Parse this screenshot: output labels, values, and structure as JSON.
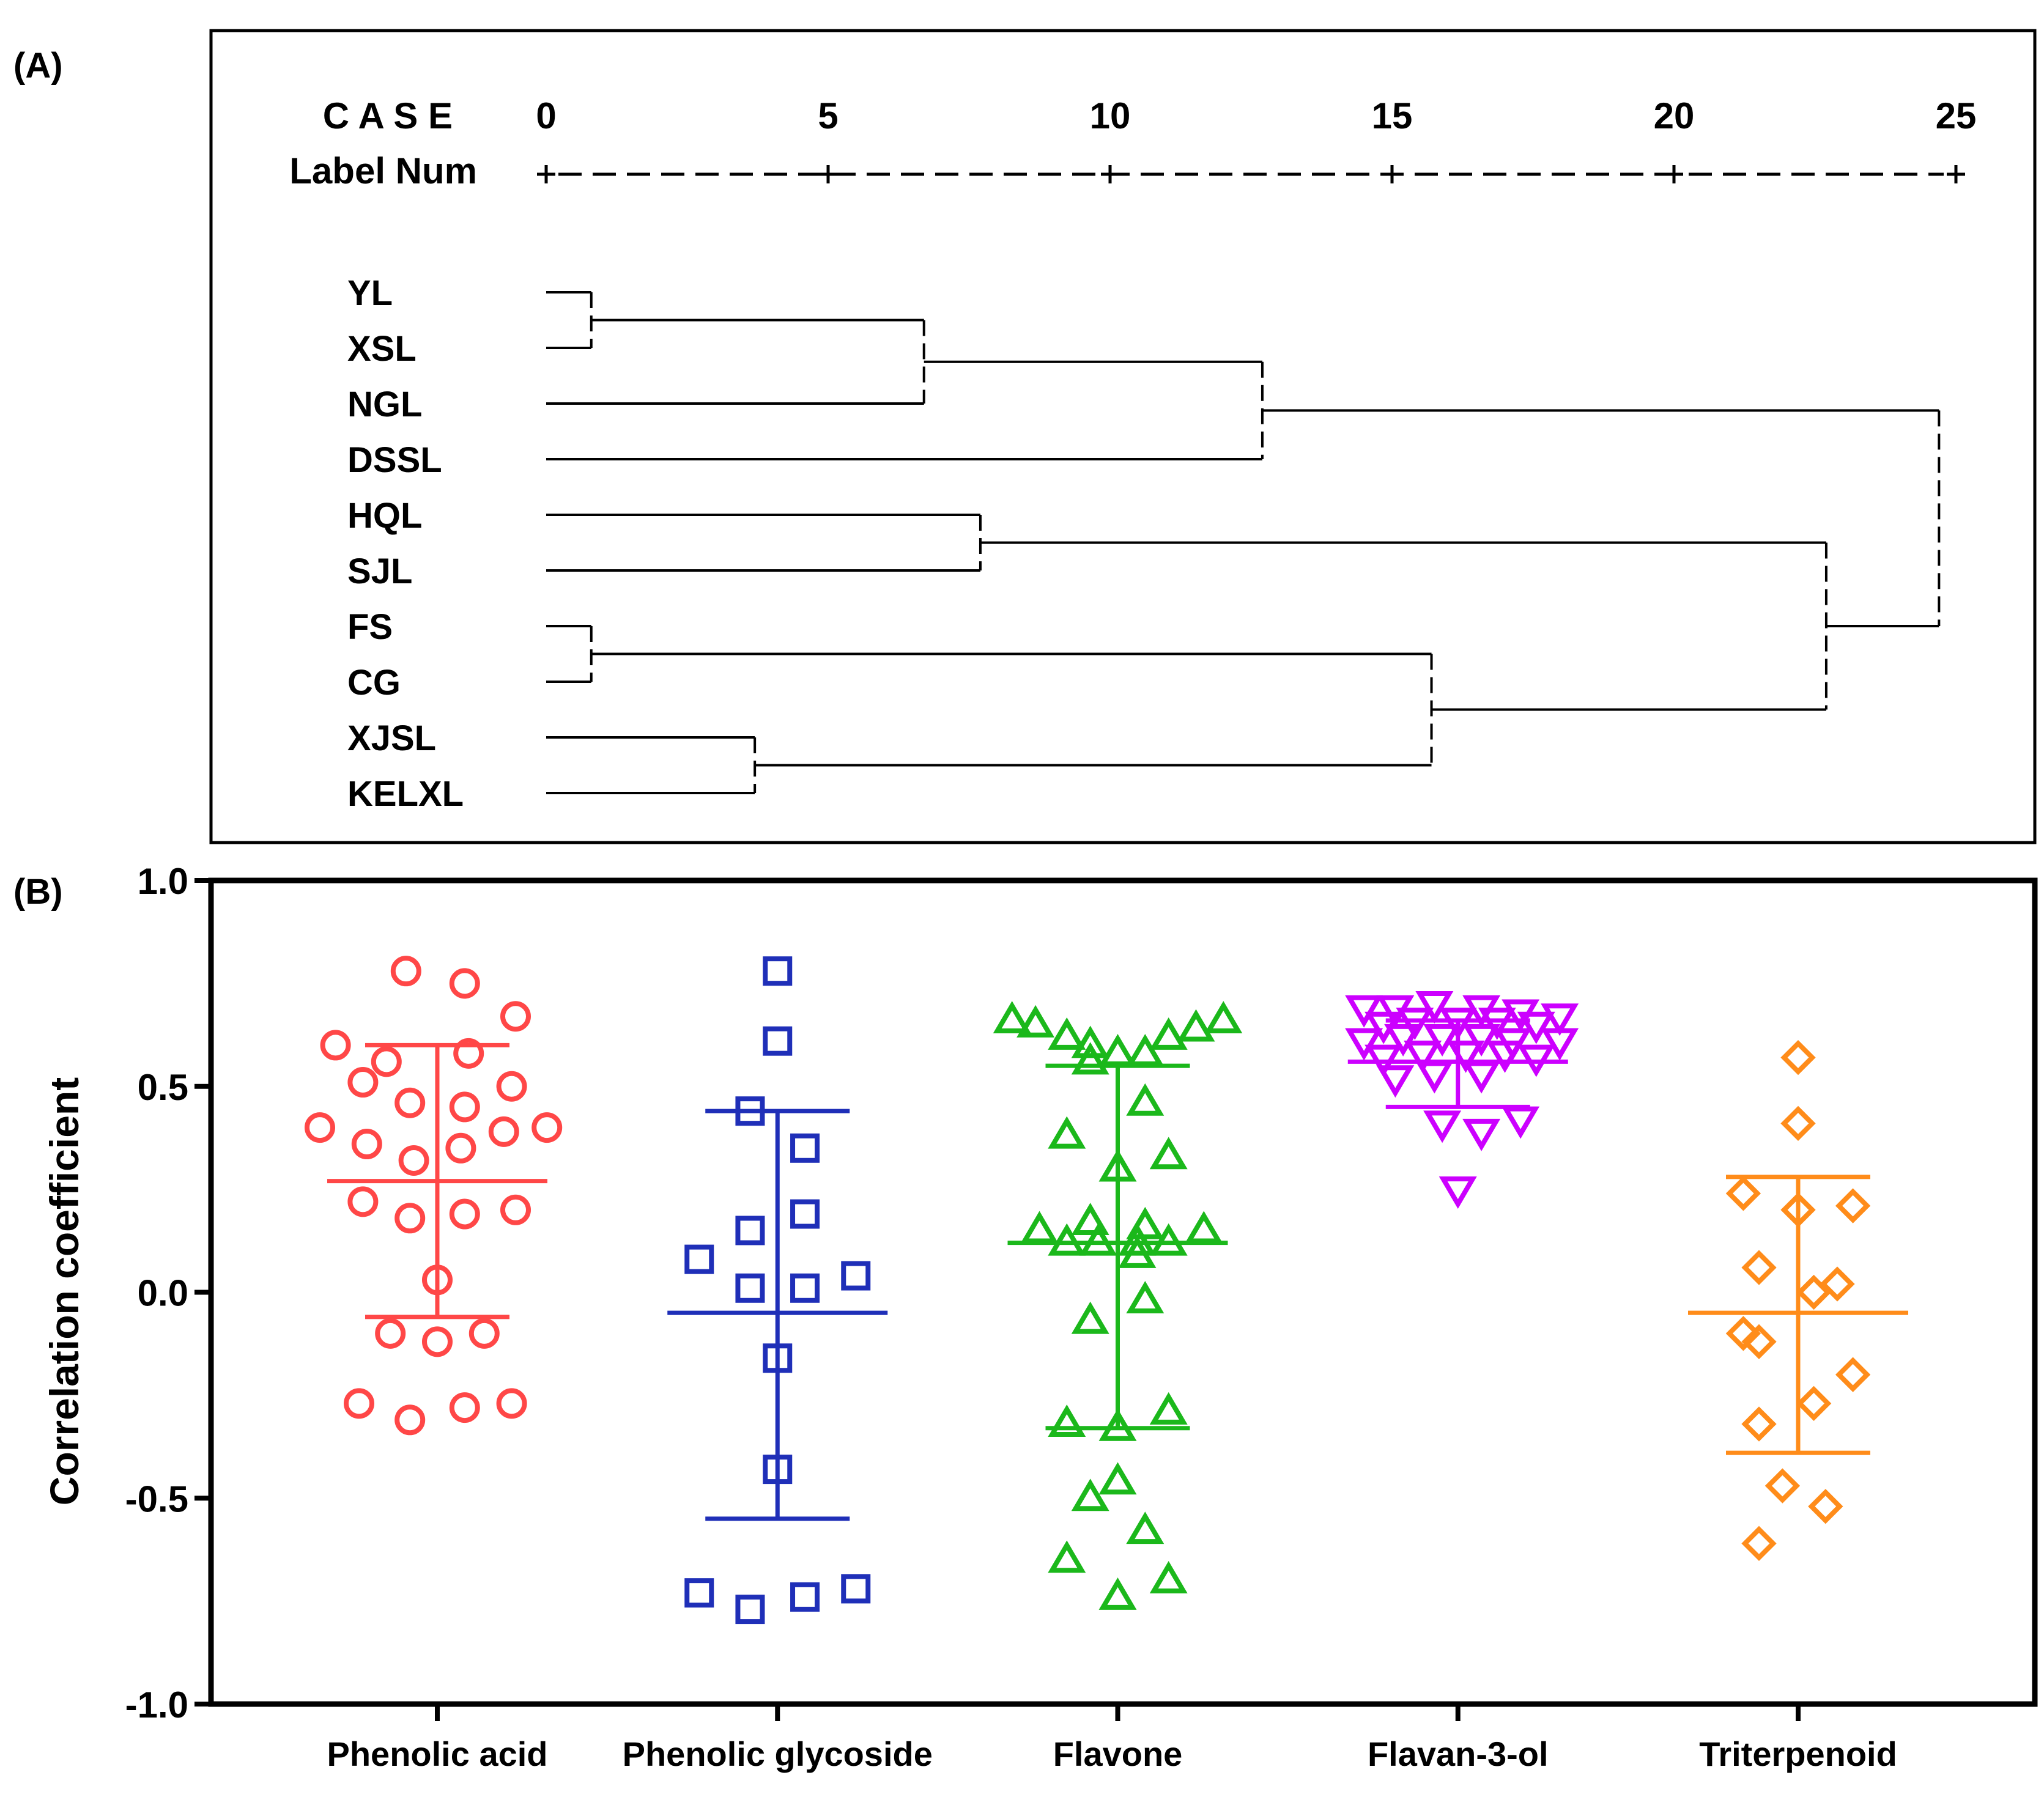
{
  "chart_data": [
    {
      "type": "dendrogram",
      "panel_label": "(A)",
      "header": {
        "line1": "C A S E",
        "line2": "Label  Num"
      },
      "scale_ticks": [
        "0",
        "5",
        "10",
        "15",
        "20",
        "25"
      ],
      "scale_range": [
        0,
        25
      ],
      "leaves": [
        "YL",
        "XSL",
        "NGL",
        "DSSL",
        "HQL",
        "SJL",
        "FS",
        "CG",
        "XJSL",
        "KELXL"
      ],
      "merges": [
        {
          "members": [
            "YL",
            "XSL"
          ],
          "distance": 0.8
        },
        {
          "members": [
            "FS",
            "CG"
          ],
          "distance": 0.8
        },
        {
          "members": [
            "XJSL",
            "KELXL"
          ],
          "distance": 3.7
        },
        {
          "members": [
            "YL+XSL",
            "NGL"
          ],
          "distance": 6.7
        },
        {
          "members": [
            "HQL",
            "SJL"
          ],
          "distance": 7.7
        },
        {
          "members": [
            "YL+XSL+NGL",
            "DSSL"
          ],
          "distance": 12.7
        },
        {
          "members": [
            "FS+CG",
            "XJSL+KELXL"
          ],
          "distance": 15.7
        },
        {
          "members": [
            "HQL+SJL",
            "FS+CG+XJSL+KELXL"
          ],
          "distance": 22.7
        },
        {
          "members": [
            "YL+XSL+NGL+DSSL",
            "HQL+SJL+FS+CG+XJSL+KELXL"
          ],
          "distance": 24.7
        }
      ]
    },
    {
      "type": "scatter",
      "panel_label": "(B)",
      "ylabel": "Correlation coefficient",
      "ylim": [
        -1.0,
        1.0
      ],
      "yticks": [
        "-1.0",
        "-0.5",
        "0.0",
        "0.5",
        "1.0"
      ],
      "categories": [
        "Phenolic acid",
        "Phenolic glycoside",
        "Flavone",
        "Flavan-3-ol",
        "Triterpenoid"
      ],
      "series": [
        {
          "name": "Phenolic acid",
          "marker": "circle",
          "color": "#ff4747",
          "mean": 0.27,
          "sd_upper": 0.6,
          "sd_lower": -0.06,
          "points": [
            {
              "o": -0.08,
              "v": 0.78
            },
            {
              "o": 0.07,
              "v": 0.75
            },
            {
              "o": 0.2,
              "v": 0.67
            },
            {
              "o": -0.26,
              "v": 0.6
            },
            {
              "o": 0.08,
              "v": 0.58
            },
            {
              "o": -0.13,
              "v": 0.56
            },
            {
              "o": -0.19,
              "v": 0.51
            },
            {
              "o": 0.19,
              "v": 0.5
            },
            {
              "o": -0.07,
              "v": 0.46
            },
            {
              "o": 0.07,
              "v": 0.45
            },
            {
              "o": -0.3,
              "v": 0.4
            },
            {
              "o": 0.17,
              "v": 0.39
            },
            {
              "o": 0.28,
              "v": 0.4
            },
            {
              "o": -0.18,
              "v": 0.36
            },
            {
              "o": 0.06,
              "v": 0.35
            },
            {
              "o": -0.06,
              "v": 0.32
            },
            {
              "o": -0.19,
              "v": 0.22
            },
            {
              "o": 0.2,
              "v": 0.2
            },
            {
              "o": -0.07,
              "v": 0.18
            },
            {
              "o": 0.07,
              "v": 0.19
            },
            {
              "o": 0.0,
              "v": 0.03
            },
            {
              "o": -0.12,
              "v": -0.1
            },
            {
              "o": 0.12,
              "v": -0.1
            },
            {
              "o": 0.0,
              "v": -0.12
            },
            {
              "o": -0.2,
              "v": -0.27
            },
            {
              "o": 0.07,
              "v": -0.28
            },
            {
              "o": 0.19,
              "v": -0.27
            },
            {
              "o": -0.07,
              "v": -0.31
            }
          ]
        },
        {
          "name": "Phenolic glycoside",
          "marker": "square",
          "color": "#1f2fb8",
          "mean": -0.05,
          "sd_upper": 0.44,
          "sd_lower": -0.55,
          "points": [
            {
              "o": 0.0,
              "v": 0.78
            },
            {
              "o": 0.0,
              "v": 0.61
            },
            {
              "o": -0.07,
              "v": 0.44
            },
            {
              "o": 0.07,
              "v": 0.35
            },
            {
              "o": 0.07,
              "v": 0.19
            },
            {
              "o": -0.07,
              "v": 0.15
            },
            {
              "o": -0.2,
              "v": 0.08
            },
            {
              "o": 0.2,
              "v": 0.04
            },
            {
              "o": -0.07,
              "v": 0.01
            },
            {
              "o": 0.07,
              "v": 0.01
            },
            {
              "o": 0.0,
              "v": -0.16
            },
            {
              "o": 0.0,
              "v": -0.43
            },
            {
              "o": -0.2,
              "v": -0.73
            },
            {
              "o": -0.07,
              "v": -0.77
            },
            {
              "o": 0.07,
              "v": -0.74
            },
            {
              "o": 0.2,
              "v": -0.72
            }
          ]
        },
        {
          "name": "Flavone",
          "marker": "triangle-up",
          "color": "#1bb81b",
          "mean": 0.12,
          "sd_upper": 0.55,
          "sd_lower": -0.33,
          "points": [
            {
              "o": -0.27,
              "v": 0.66
            },
            {
              "o": -0.21,
              "v": 0.65
            },
            {
              "o": -0.13,
              "v": 0.62
            },
            {
              "o": -0.07,
              "v": 0.6
            },
            {
              "o": 0.07,
              "v": 0.58
            },
            {
              "o": 0.13,
              "v": 0.62
            },
            {
              "o": 0.2,
              "v": 0.64
            },
            {
              "o": 0.27,
              "v": 0.66
            },
            {
              "o": -0.07,
              "v": 0.56
            },
            {
              "o": 0.0,
              "v": 0.58
            },
            {
              "o": 0.07,
              "v": 0.46
            },
            {
              "o": -0.13,
              "v": 0.38
            },
            {
              "o": 0.13,
              "v": 0.33
            },
            {
              "o": 0.0,
              "v": 0.3
            },
            {
              "o": -0.2,
              "v": 0.15
            },
            {
              "o": -0.07,
              "v": 0.17
            },
            {
              "o": 0.07,
              "v": 0.16
            },
            {
              "o": 0.22,
              "v": 0.15
            },
            {
              "o": -0.13,
              "v": 0.12
            },
            {
              "o": -0.05,
              "v": 0.12
            },
            {
              "o": 0.05,
              "v": 0.12
            },
            {
              "o": 0.13,
              "v": 0.12
            },
            {
              "o": 0.05,
              "v": 0.09
            },
            {
              "o": 0.07,
              "v": -0.02
            },
            {
              "o": -0.07,
              "v": -0.07
            },
            {
              "o": -0.13,
              "v": -0.32
            },
            {
              "o": 0.0,
              "v": -0.33
            },
            {
              "o": 0.13,
              "v": -0.29
            },
            {
              "o": 0.0,
              "v": -0.46
            },
            {
              "o": -0.07,
              "v": -0.5
            },
            {
              "o": 0.07,
              "v": -0.58
            },
            {
              "o": -0.13,
              "v": -0.65
            },
            {
              "o": 0.13,
              "v": -0.7
            },
            {
              "o": 0.0,
              "v": -0.74
            }
          ]
        },
        {
          "name": "Flavan-3-ol",
          "marker": "triangle-down",
          "color": "#cc00ff",
          "mean": 0.56,
          "sd_upper": 0.66,
          "sd_lower": 0.45,
          "points": [
            {
              "o": -0.24,
              "v": 0.69
            },
            {
              "o": -0.16,
              "v": 0.69
            },
            {
              "o": -0.06,
              "v": 0.7
            },
            {
              "o": 0.06,
              "v": 0.69
            },
            {
              "o": 0.16,
              "v": 0.68
            },
            {
              "o": 0.26,
              "v": 0.67
            },
            {
              "o": -0.19,
              "v": 0.65
            },
            {
              "o": -0.11,
              "v": 0.66
            },
            {
              "o": 0.0,
              "v": 0.66
            },
            {
              "o": 0.1,
              "v": 0.66
            },
            {
              "o": 0.2,
              "v": 0.65
            },
            {
              "o": -0.24,
              "v": 0.61
            },
            {
              "o": -0.14,
              "v": 0.62
            },
            {
              "o": -0.04,
              "v": 0.62
            },
            {
              "o": 0.06,
              "v": 0.62
            },
            {
              "o": 0.14,
              "v": 0.61
            },
            {
              "o": 0.26,
              "v": 0.61
            },
            {
              "o": -0.19,
              "v": 0.57
            },
            {
              "o": -0.09,
              "v": 0.58
            },
            {
              "o": 0.02,
              "v": 0.58
            },
            {
              "o": 0.12,
              "v": 0.58
            },
            {
              "o": 0.2,
              "v": 0.57
            },
            {
              "o": -0.16,
              "v": 0.52
            },
            {
              "o": -0.06,
              "v": 0.53
            },
            {
              "o": 0.06,
              "v": 0.53
            },
            {
              "o": -0.04,
              "v": 0.41
            },
            {
              "o": 0.06,
              "v": 0.39
            },
            {
              "o": 0.16,
              "v": 0.42
            },
            {
              "o": 0.0,
              "v": 0.25
            }
          ]
        },
        {
          "name": "Triterpenoid",
          "marker": "diamond",
          "color": "#ff8c1a",
          "mean": -0.05,
          "sd_upper": 0.28,
          "sd_lower": -0.39,
          "points": [
            {
              "o": 0.0,
              "v": 0.57
            },
            {
              "o": 0.0,
              "v": 0.41
            },
            {
              "o": -0.14,
              "v": 0.24
            },
            {
              "o": 0.14,
              "v": 0.21
            },
            {
              "o": 0.0,
              "v": 0.2
            },
            {
              "o": -0.1,
              "v": 0.06
            },
            {
              "o": 0.1,
              "v": 0.02
            },
            {
              "o": 0.04,
              "v": 0.0
            },
            {
              "o": -0.14,
              "v": -0.1
            },
            {
              "o": -0.1,
              "v": -0.12
            },
            {
              "o": 0.14,
              "v": -0.2
            },
            {
              "o": 0.04,
              "v": -0.27
            },
            {
              "o": -0.1,
              "v": -0.32
            },
            {
              "o": -0.04,
              "v": -0.47
            },
            {
              "o": 0.07,
              "v": -0.52
            },
            {
              "o": -0.1,
              "v": -0.61
            }
          ]
        }
      ]
    }
  ]
}
